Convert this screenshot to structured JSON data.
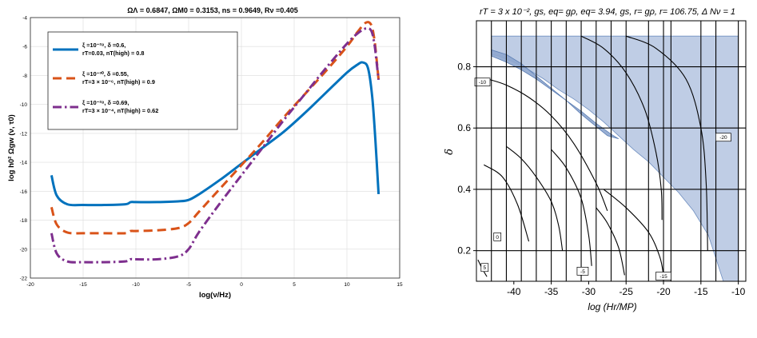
{
  "chart_data": [
    {
      "type": "line",
      "title": "ΩΛ = 0.6847, ΩM0 = 0.3153, ns = 0.9649, Rν =0.405",
      "xlabel": "log(ν/Hz)",
      "ylabel": "log h0² Ωgw (ν, τ0)",
      "xlim": [
        -20,
        15
      ],
      "ylim": [
        -22,
        -4
      ],
      "xticks": [
        "-20",
        "-15",
        "-10",
        "-5",
        "0",
        "5",
        "10",
        "15"
      ],
      "yticks": [
        "-22",
        "-20",
        "-18",
        "-16",
        "-14",
        "-12",
        "-10",
        "-8",
        "-6",
        "-4"
      ],
      "grid": true,
      "legend_position": "top-left",
      "series": [
        {
          "name": "ξ =10⁻²⁸, δ =0.6, rT=0.03, nT(high) = 0.8",
          "legend_lines": [
            "ξ =10⁻²⁸, δ =0.6,",
            "rT=0.03, nT(high) = 0.8"
          ],
          "color": "#0072bd",
          "dash": "solid",
          "x": [
            -18,
            -17.5,
            -16.5,
            -15,
            -13,
            -11,
            -10.5,
            -10,
            -8,
            -6,
            -5,
            -4,
            -2,
            0,
            2,
            4,
            6,
            8,
            10,
            11,
            11.5,
            12,
            12.4,
            12.7,
            13
          ],
          "y": [
            -14.9,
            -16.3,
            -16.9,
            -16.95,
            -16.95,
            -16.9,
            -16.75,
            -16.75,
            -16.75,
            -16.7,
            -16.6,
            -16.2,
            -15.2,
            -14.1,
            -13.0,
            -11.9,
            -10.6,
            -9.2,
            -7.8,
            -7.25,
            -7.1,
            -7.5,
            -9.5,
            -12.5,
            -16.2
          ]
        },
        {
          "name": "ξ =10⁻³⁰, δ =0.55, rT=3 × 10⁻⁶, nT(high) = 0.9",
          "legend_lines": [
            "ξ =10⁻³⁰, δ =0.55,",
            "rT=3 × 10⁻⁶, nT(high) = 0.9"
          ],
          "color": "#d95319",
          "dash": "dashed",
          "x": [
            -18,
            -17.5,
            -16.5,
            -15,
            -13,
            -11,
            -10.5,
            -10,
            -8,
            -6,
            -5,
            -4,
            -2,
            0,
            2,
            4,
            6,
            8,
            10,
            11,
            11.8,
            12.3,
            12.6,
            12.8,
            13
          ],
          "y": [
            -17.1,
            -18.3,
            -18.85,
            -18.9,
            -18.9,
            -18.9,
            -18.75,
            -18.75,
            -18.7,
            -18.55,
            -18.2,
            -17.4,
            -15.8,
            -14.2,
            -12.6,
            -10.9,
            -9.3,
            -7.7,
            -6.0,
            -5.0,
            -4.35,
            -4.5,
            -5.5,
            -6.8,
            -8.3
          ]
        },
        {
          "name": "ξ =10⁻²⁸, δ =0.69, rT=3 × 10⁻⁴, nT(high) = 0.62",
          "legend_lines": [
            "ξ =10⁻²⁸, δ =0.69,",
            "rT=3 × 10⁻⁴, nT(high) = 0.62"
          ],
          "color": "#7e2f8e",
          "dash": "dashdot",
          "x": [
            -18,
            -17.5,
            -16.5,
            -15,
            -13,
            -11,
            -10.5,
            -10,
            -8,
            -6,
            -5,
            -4,
            -2,
            0,
            2,
            4,
            6,
            8,
            10,
            11,
            11.8,
            12.3,
            12.6,
            12.8,
            13
          ],
          "y": [
            -18.9,
            -20.3,
            -20.85,
            -20.9,
            -20.9,
            -20.85,
            -20.7,
            -20.7,
            -20.7,
            -20.5,
            -20.0,
            -18.8,
            -16.8,
            -14.9,
            -13.0,
            -11.1,
            -9.3,
            -7.5,
            -5.8,
            -5.1,
            -4.75,
            -4.9,
            -5.8,
            -7.0,
            -8.3
          ]
        }
      ]
    },
    {
      "type": "area",
      "title": "rT = 3 x 10⁻², gs, eq= gρ, eq= 3.94, gs, r= gρ, r= 106.75, Δ Nν = 1",
      "xlabel": "log (Hr/MP)",
      "ylabel": "δ",
      "xlim": [
        -45,
        -9
      ],
      "ylim": [
        0.1,
        0.95
      ],
      "xticks": [
        "-40",
        "-35",
        "-30",
        "-25",
        "-20",
        "-15",
        "-10"
      ],
      "yticks": [
        "0.2",
        "0.4",
        "0.6",
        "0.8"
      ],
      "grid": true,
      "gridlines_x": [
        -43,
        -41,
        -39,
        -37,
        -35,
        -33,
        -31,
        -29,
        -27,
        -25,
        -22,
        -20,
        -19,
        -15,
        -13,
        -10
      ],
      "gridlines_y": [
        0.2,
        0.4,
        0.6,
        0.8
      ],
      "region_light": {
        "color": "#a9bcdc",
        "x": [
          -43,
          -10,
          -10,
          -12,
          -12.4,
          -14,
          -16,
          -18,
          -20,
          -22,
          -24,
          -26,
          -28,
          -30,
          -32,
          -34,
          -36,
          -38,
          -40,
          -42,
          -43
        ],
        "y": [
          0.9,
          0.9,
          0.1,
          0.1,
          0.13,
          0.25,
          0.33,
          0.39,
          0.44,
          0.49,
          0.53,
          0.575,
          0.62,
          0.66,
          0.695,
          0.725,
          0.76,
          0.79,
          0.815,
          0.835,
          0.84
        ]
      },
      "region_dark": {
        "color": "#8ea6ce",
        "x": [
          -43,
          -41,
          -39,
          -37,
          -35,
          -33,
          -31,
          -29,
          -27.5,
          -26,
          -27,
          -29,
          -31,
          -33,
          -35,
          -37,
          -39,
          -41,
          -43
        ],
        "y": [
          0.855,
          0.84,
          0.81,
          0.77,
          0.73,
          0.69,
          0.645,
          0.605,
          0.575,
          0.565,
          0.58,
          0.615,
          0.655,
          0.69,
          0.725,
          0.76,
          0.79,
          0.815,
          0.835
        ]
      },
      "contours": [
        {
          "label": "-10",
          "x": [
            -43.5,
            -41,
            -38,
            -35,
            -32,
            -29,
            -27.5
          ],
          "y": [
            0.76,
            0.74,
            0.7,
            0.64,
            0.55,
            0.42,
            0.33
          ],
          "label_at": [
            -44.2,
            0.75
          ]
        },
        {
          "label": "-20",
          "x": [
            -31,
            -28,
            -25,
            -22.5,
            -21,
            -20.3,
            -20.2
          ],
          "y": [
            0.9,
            0.86,
            0.78,
            0.66,
            0.52,
            0.4,
            0.3
          ],
          "label_at": [
            -12,
            0.57
          ]
        },
        {
          "label": "0",
          "x": [
            -41,
            -39,
            -37,
            -35,
            -34,
            -33.5
          ],
          "y": [
            0.54,
            0.5,
            0.44,
            0.36,
            0.28,
            0.2
          ],
          "label_at": [
            -42.2,
            0.245
          ]
        },
        {
          "label": "-5",
          "x": [
            -35,
            -33,
            -31,
            -30,
            -29.6
          ],
          "y": [
            0.53,
            0.47,
            0.37,
            0.25,
            0.15
          ],
          "label_at": [
            -30.8,
            0.133
          ]
        },
        {
          "label": "-15",
          "x": [
            -28,
            -25,
            -22,
            -20.5,
            -20
          ],
          "y": [
            0.4,
            0.34,
            0.26,
            0.18,
            0.12
          ],
          "label_at": [
            -20,
            0.117
          ]
        },
        {
          "label": "",
          "x": [
            -44,
            -41.5,
            -39.5,
            -38
          ],
          "y": [
            0.48,
            0.44,
            0.35,
            0.23
          ],
          "label_at": null
        },
        {
          "label": "",
          "x": [
            -29,
            -27.5,
            -26,
            -25.2
          ],
          "y": [
            0.34,
            0.29,
            0.21,
            0.12
          ],
          "label_at": null
        },
        {
          "label": "",
          "x": [
            -25,
            -21,
            -17,
            -15,
            -14.3,
            -14.1
          ],
          "y": [
            0.9,
            0.86,
            0.76,
            0.6,
            0.42,
            0.2
          ],
          "label_at": null
        },
        {
          "label": "",
          "x": [
            -44.8,
            -44.2,
            -43.6
          ],
          "y": [
            0.17,
            0.14,
            0.115
          ],
          "label_at": null
        }
      ],
      "small_labels": [
        {
          "label": "5",
          "x": -43.9,
          "y": 0.145
        }
      ]
    }
  ]
}
